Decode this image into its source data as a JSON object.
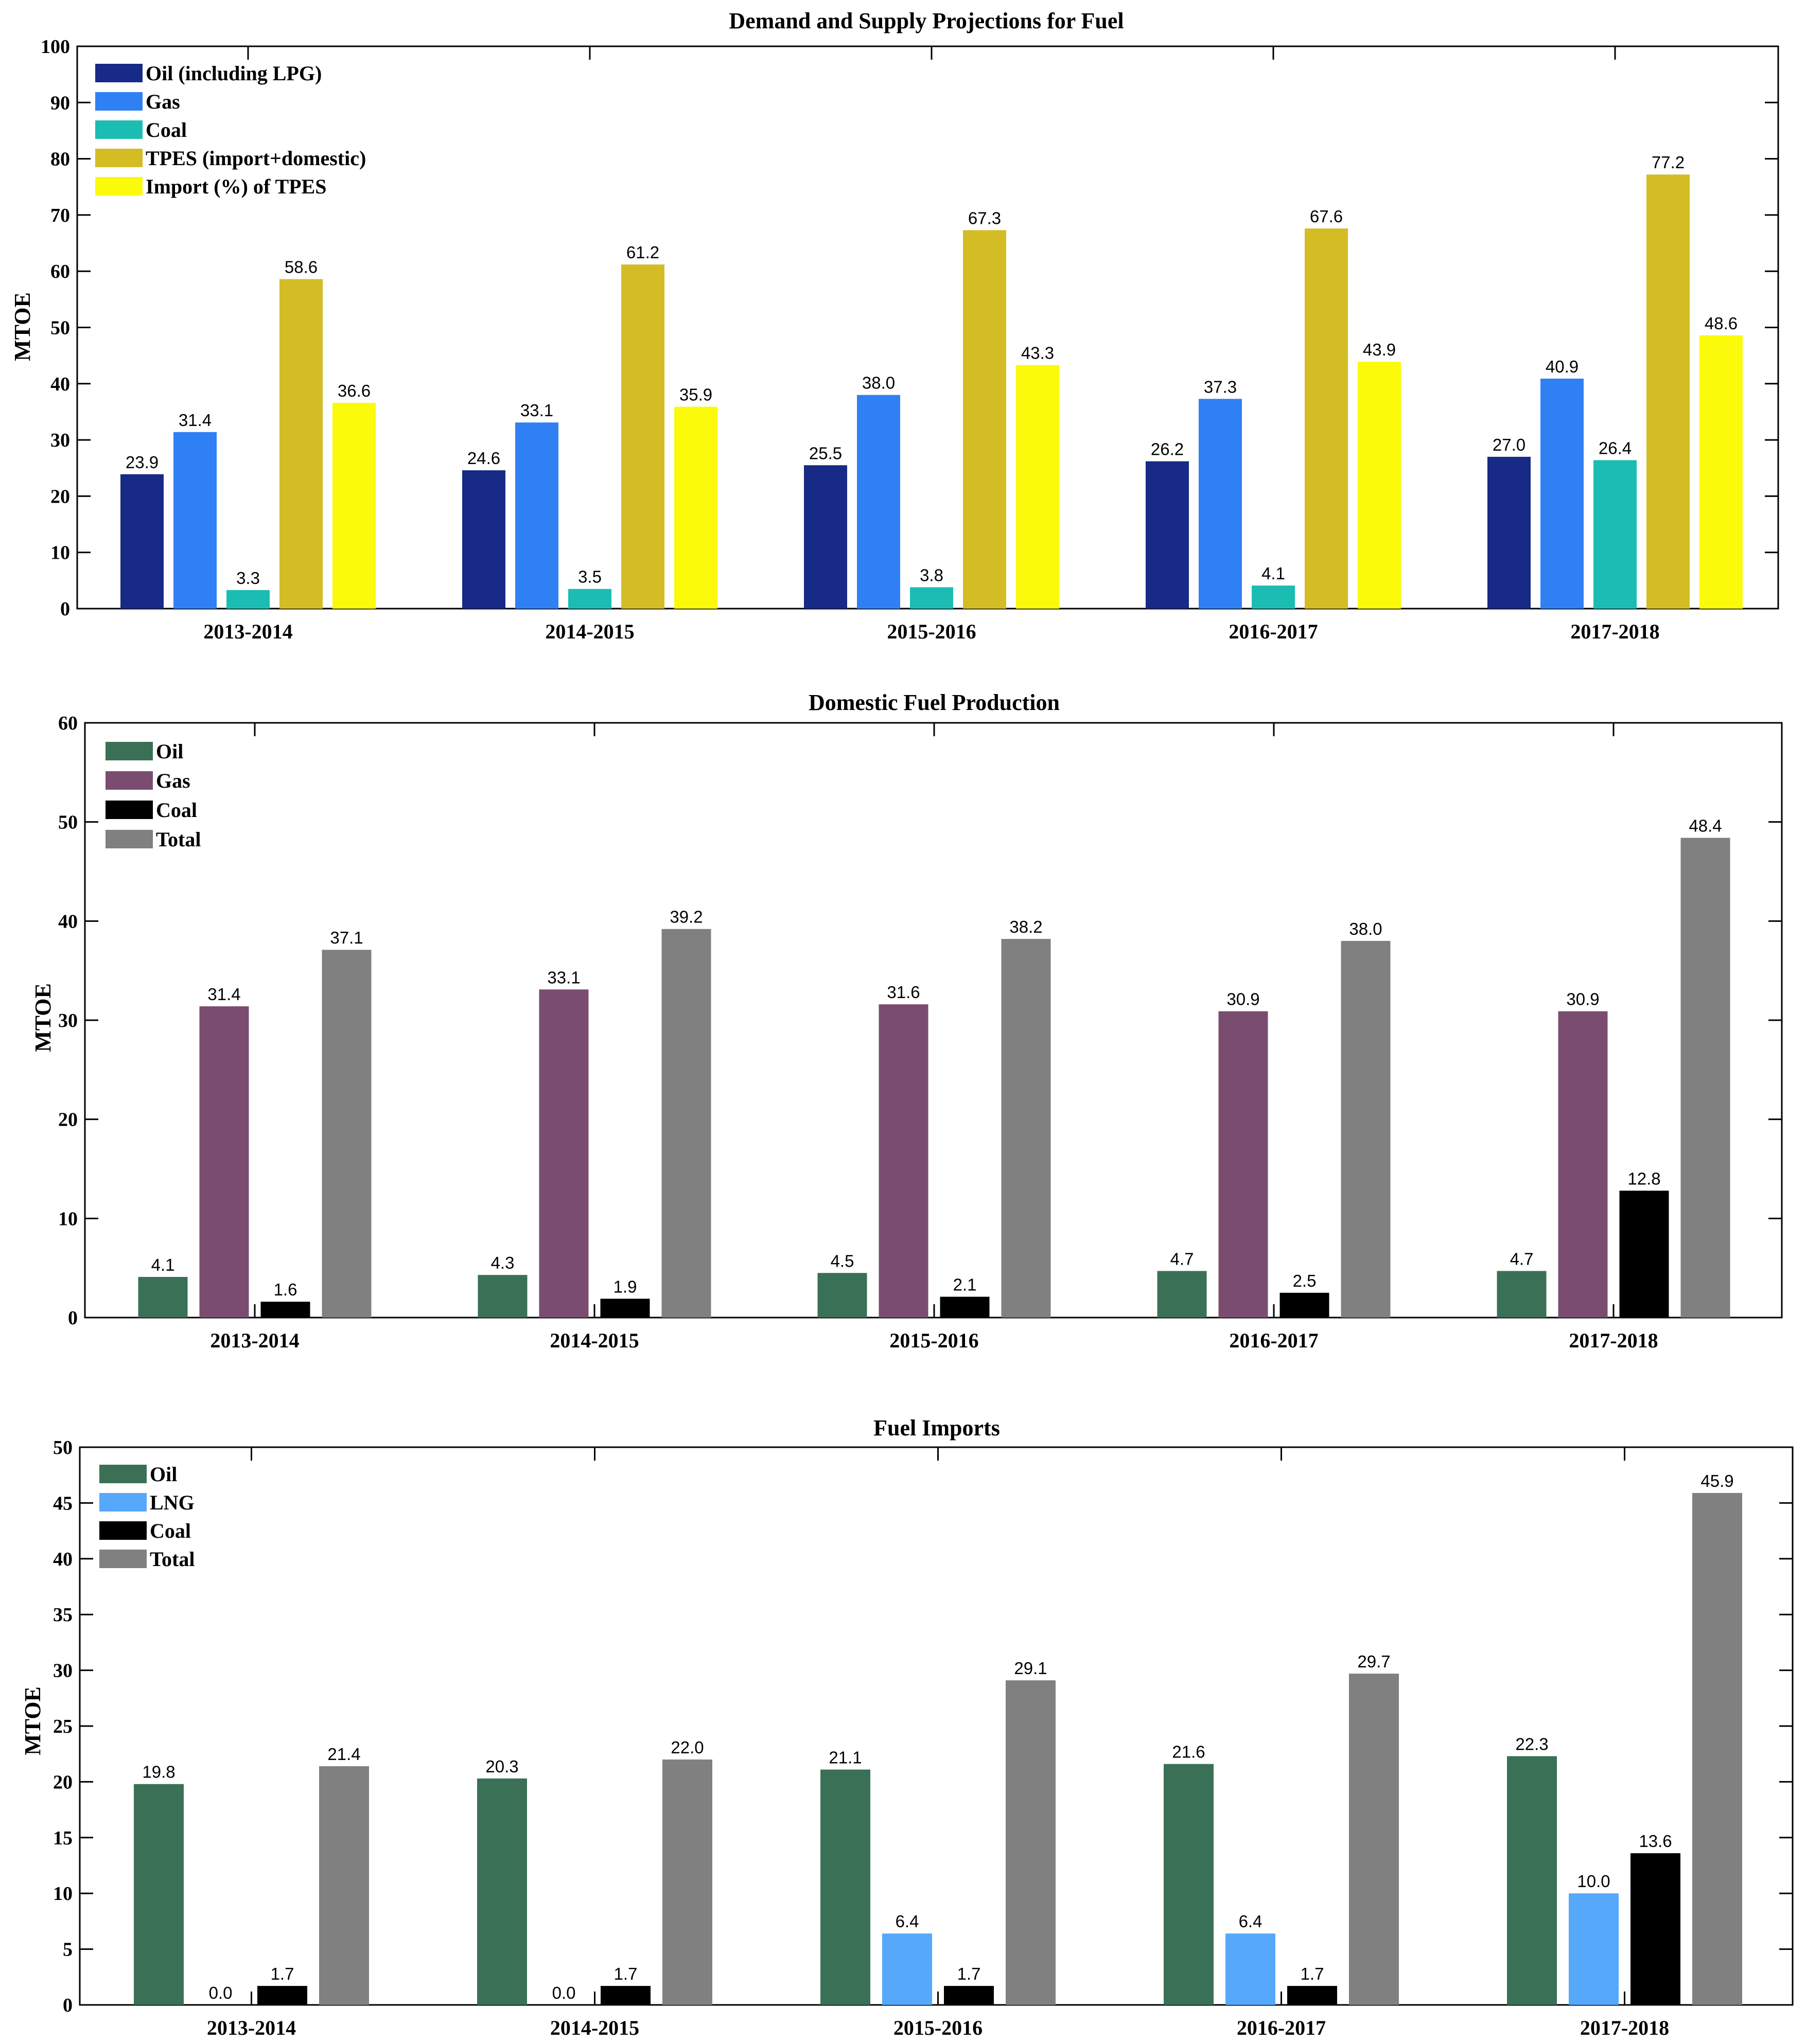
{
  "chart_data": [
    {
      "type": "bar",
      "title": "Demand and Supply Projections for Fuel",
      "xlabel": "",
      "ylabel": "MTOE",
      "ylim": [
        0,
        100
      ],
      "yticks": [
        0,
        10,
        20,
        30,
        40,
        50,
        60,
        70,
        80,
        90,
        100
      ],
      "categories": [
        "2013-2014",
        "2014-2015",
        "2015-2016",
        "2016-2017",
        "2017-2018"
      ],
      "legend_position": "top-left",
      "series": [
        {
          "name": "Oil (including LPG)",
          "color": "#172a85",
          "values": [
            23.9,
            24.6,
            25.5,
            26.2,
            27.0
          ],
          "labels": [
            "23.9",
            "24.6",
            "25.5",
            "26.2",
            "27.0"
          ]
        },
        {
          "name": "Gas",
          "color": "#2f80f5",
          "values": [
            31.4,
            33.1,
            38.0,
            37.3,
            40.9
          ],
          "labels": [
            "31.4",
            "33.1",
            "38.0",
            "37.3",
            "40.9"
          ]
        },
        {
          "name": "Coal",
          "color": "#1bbdb2",
          "values": [
            3.3,
            3.5,
            3.8,
            4.1,
            26.4
          ],
          "labels": [
            "3.3",
            "3.5",
            "3.8",
            "4.1",
            "26.4"
          ]
        },
        {
          "name": "TPES (import+domestic)",
          "color": "#d4bc24",
          "values": [
            58.6,
            61.2,
            67.3,
            67.6,
            77.2
          ],
          "labels": [
            "58.6",
            "61.2",
            "67.3",
            "67.6",
            "77.2"
          ]
        },
        {
          "name": "Import (%) of TPES",
          "color": "#fafa0a",
          "values": [
            36.6,
            35.9,
            43.3,
            43.9,
            48.6
          ],
          "labels": [
            "36.6",
            "35.9",
            "43.3",
            "43.9",
            "48.6"
          ]
        }
      ]
    },
    {
      "type": "bar",
      "title": "Domestic Fuel Production",
      "xlabel": "",
      "ylabel": "MTOE",
      "ylim": [
        0,
        60
      ],
      "yticks": [
        0,
        10,
        20,
        30,
        40,
        50,
        60
      ],
      "categories": [
        "2013-2014",
        "2014-2015",
        "2015-2016",
        "2016-2017",
        "2017-2018"
      ],
      "legend_position": "top-left",
      "series": [
        {
          "name": "Oil",
          "color": "#3a7056",
          "values": [
            4.1,
            4.3,
            4.5,
            4.7,
            4.7
          ],
          "labels": [
            "4.1",
            "4.3",
            "4.5",
            "4.7",
            "4.7"
          ]
        },
        {
          "name": "Gas",
          "color": "#7a4d70",
          "values": [
            31.4,
            33.1,
            31.6,
            30.9,
            30.9
          ],
          "labels": [
            "31.4",
            "33.1",
            "31.6",
            "30.9",
            "30.9"
          ]
        },
        {
          "name": "Coal",
          "color": "#000000",
          "values": [
            1.6,
            1.9,
            2.1,
            2.5,
            12.8
          ],
          "labels": [
            "1.6",
            "1.9",
            "2.1",
            "2.5",
            "12.8"
          ]
        },
        {
          "name": "Total",
          "color": "#808080",
          "values": [
            37.1,
            39.2,
            38.2,
            38.0,
            48.4
          ],
          "labels": [
            "37.1",
            "39.2",
            "38.2",
            "38.0",
            "48.4"
          ]
        }
      ]
    },
    {
      "type": "bar",
      "title": "Fuel Imports",
      "xlabel": "",
      "ylabel": "MTOE",
      "ylim": [
        0,
        50
      ],
      "yticks": [
        0,
        5,
        10,
        15,
        20,
        25,
        30,
        35,
        40,
        45,
        50
      ],
      "categories": [
        "2013-2014",
        "2014-2015",
        "2015-2016",
        "2016-2017",
        "2017-2018"
      ],
      "legend_position": "top-left",
      "series": [
        {
          "name": "Oil",
          "color": "#3a7056",
          "values": [
            19.8,
            20.3,
            21.1,
            21.6,
            22.3
          ],
          "labels": [
            "19.8",
            "20.3",
            "21.1",
            "21.6",
            "22.3"
          ]
        },
        {
          "name": "LNG",
          "color": "#56a8fa",
          "values": [
            0.0,
            0.0,
            6.4,
            6.4,
            10.0
          ],
          "labels": [
            "0.0",
            "0.0",
            "6.4",
            "6.4",
            "10.0"
          ]
        },
        {
          "name": "Coal",
          "color": "#000000",
          "values": [
            1.7,
            1.7,
            1.7,
            1.7,
            13.6
          ],
          "labels": [
            "1.7",
            "1.7",
            "1.7",
            "1.7",
            "13.6"
          ]
        },
        {
          "name": "Total",
          "color": "#808080",
          "values": [
            21.4,
            22.0,
            29.1,
            29.7,
            45.9
          ],
          "labels": [
            "21.4",
            "22.0",
            "29.1",
            "29.7",
            "45.9"
          ]
        }
      ]
    }
  ]
}
